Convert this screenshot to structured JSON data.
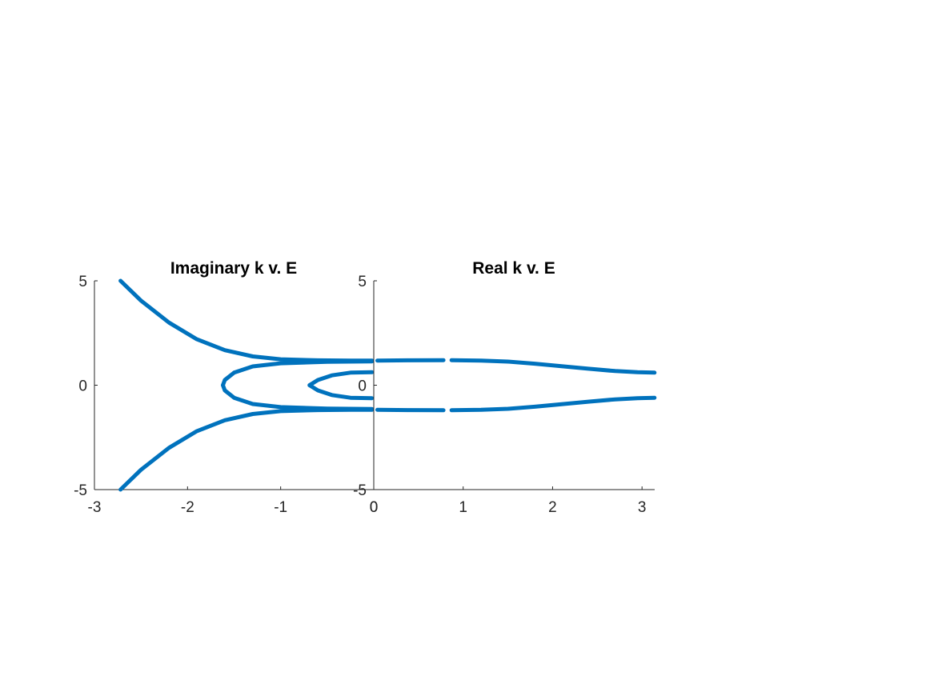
{
  "chart_data": [
    {
      "type": "line",
      "title": "Imaginary k v. E",
      "xlabel": "",
      "ylabel": "",
      "xlim": [
        -3,
        0
      ],
      "ylim": [
        -5,
        5
      ],
      "x_ticks": [
        -3,
        -2,
        -1,
        0
      ],
      "y_ticks": [
        -5,
        0,
        5
      ],
      "x_tick_labels": [
        "-3",
        "-2",
        "-1",
        "0"
      ],
      "y_tick_labels": [
        "-5",
        "0",
        "5"
      ],
      "grid": false,
      "color": "#0072BD",
      "series": [
        {
          "points": [
            [
              -2.72,
              5.0
            ],
            [
              -2.5,
              4.05
            ],
            [
              -2.2,
              3.0
            ],
            [
              -1.9,
              2.2
            ],
            [
              -1.6,
              1.68
            ],
            [
              -1.3,
              1.38
            ],
            [
              -1.0,
              1.24
            ],
            [
              -0.6,
              1.19
            ],
            [
              -0.25,
              1.18
            ],
            [
              -0.02,
              1.18
            ]
          ]
        },
        {
          "points": [
            [
              -0.02,
              1.14
            ],
            [
              -0.5,
              1.12
            ],
            [
              -1.0,
              1.05
            ],
            [
              -1.3,
              0.9
            ],
            [
              -1.5,
              0.6
            ],
            [
              -1.6,
              0.25
            ],
            [
              -1.62,
              0.0
            ],
            [
              -1.6,
              -0.25
            ],
            [
              -1.5,
              -0.6
            ],
            [
              -1.3,
              -0.9
            ],
            [
              -1.0,
              -1.05
            ],
            [
              -0.5,
              -1.12
            ],
            [
              -0.02,
              -1.14
            ]
          ]
        },
        {
          "points": [
            [
              -0.02,
              0.62
            ],
            [
              -0.25,
              0.6
            ],
            [
              -0.45,
              0.47
            ],
            [
              -0.6,
              0.25
            ],
            [
              -0.69,
              0.0
            ],
            [
              -0.6,
              -0.25
            ],
            [
              -0.45,
              -0.47
            ],
            [
              -0.25,
              -0.6
            ],
            [
              -0.02,
              -0.62
            ]
          ]
        },
        {
          "points": [
            [
              -0.02,
              -1.18
            ],
            [
              -0.25,
              -1.18
            ],
            [
              -0.6,
              -1.19
            ],
            [
              -1.0,
              -1.24
            ],
            [
              -1.3,
              -1.38
            ],
            [
              -1.6,
              -1.68
            ],
            [
              -1.9,
              -2.2
            ],
            [
              -2.2,
              -3.0
            ],
            [
              -2.5,
              -4.05
            ],
            [
              -2.72,
              -5.0
            ]
          ]
        }
      ]
    },
    {
      "type": "line",
      "title": "Real k v. E",
      "xlabel": "",
      "ylabel": "",
      "xlim": [
        0,
        3.1416
      ],
      "ylim": [
        -5,
        5
      ],
      "x_ticks": [
        0,
        1,
        2,
        3
      ],
      "y_ticks": [
        -5,
        0,
        5
      ],
      "x_tick_labels": [
        "0",
        "1",
        "2",
        "3"
      ],
      "y_tick_labels": [
        "-5",
        "0",
        "5"
      ],
      "grid": false,
      "color": "#0072BD",
      "series": [
        {
          "points": [
            [
              0.04,
              1.18
            ],
            [
              0.4,
              1.19
            ],
            [
              0.78,
              1.2
            ]
          ]
        },
        {
          "points": [
            [
              0.87,
              1.2
            ],
            [
              1.2,
              1.18
            ],
            [
              1.5,
              1.13
            ],
            [
              1.8,
              1.03
            ],
            [
              2.1,
              0.91
            ],
            [
              2.4,
              0.79
            ],
            [
              2.7,
              0.68
            ],
            [
              2.95,
              0.62
            ],
            [
              3.14,
              0.6
            ]
          ]
        },
        {
          "points": [
            [
              0.04,
              -1.18
            ],
            [
              0.4,
              -1.19
            ],
            [
              0.78,
              -1.2
            ]
          ]
        },
        {
          "points": [
            [
              0.87,
              -1.2
            ],
            [
              1.2,
              -1.18
            ],
            [
              1.5,
              -1.13
            ],
            [
              1.8,
              -1.03
            ],
            [
              2.1,
              -0.91
            ],
            [
              2.4,
              -0.79
            ],
            [
              2.7,
              -0.68
            ],
            [
              2.95,
              -0.62
            ],
            [
              3.14,
              -0.6
            ]
          ]
        }
      ]
    }
  ]
}
